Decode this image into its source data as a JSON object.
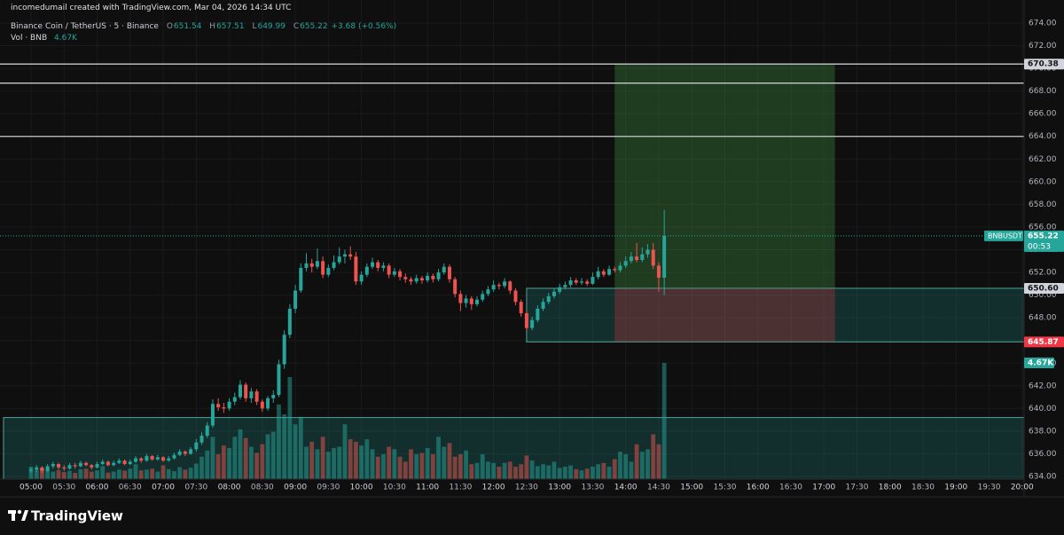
{
  "chart_data": {
    "type": "candlestick",
    "watermark": "incomedumail created with TradingView.com, Mar 04, 2026 14:34 UTC",
    "title": "Binance Coin / TetherUS · 5 · Binance",
    "ohlc_labels": [
      "O",
      "H",
      "L",
      "C"
    ],
    "change": "+3.68 (+0.56%)",
    "volume_title": "Vol · BNB",
    "volume_label": "4.67K",
    "symbol": "BNBUSDT",
    "countdown": "00:53",
    "brand": "TradingView",
    "x": [
      "05:00",
      "05:05",
      "05:10",
      "05:15",
      "05:20",
      "05:25",
      "05:30",
      "05:35",
      "05:40",
      "05:45",
      "05:50",
      "05:55",
      "06:00",
      "06:05",
      "06:10",
      "06:15",
      "06:20",
      "06:25",
      "06:30",
      "06:35",
      "06:40",
      "06:45",
      "06:50",
      "06:55",
      "07:00",
      "07:05",
      "07:10",
      "07:15",
      "07:20",
      "07:25",
      "07:30",
      "07:35",
      "07:40",
      "07:45",
      "07:50",
      "07:55",
      "08:00",
      "08:05",
      "08:10",
      "08:15",
      "08:20",
      "08:25",
      "08:30",
      "08:35",
      "08:40",
      "08:45",
      "08:50",
      "08:55",
      "09:00",
      "09:05",
      "09:10",
      "09:15",
      "09:20",
      "09:25",
      "09:30",
      "09:35",
      "09:40",
      "09:45",
      "09:50",
      "09:55",
      "10:00",
      "10:05",
      "10:10",
      "10:15",
      "10:20",
      "10:25",
      "10:30",
      "10:35",
      "10:40",
      "10:45",
      "10:50",
      "10:55",
      "11:00",
      "11:05",
      "11:10",
      "11:15",
      "11:20",
      "11:25",
      "11:30",
      "11:35",
      "11:40",
      "11:45",
      "11:50",
      "11:55",
      "12:00",
      "12:05",
      "12:10",
      "12:15",
      "12:20",
      "12:25",
      "12:30",
      "12:35",
      "12:40",
      "12:45",
      "12:50",
      "12:55",
      "13:00",
      "13:05",
      "13:10",
      "13:15",
      "13:20",
      "13:25",
      "13:30",
      "13:35",
      "13:40",
      "13:45",
      "13:50",
      "13:55",
      "14:00",
      "14:05",
      "14:10",
      "14:15",
      "14:20",
      "14:25",
      "14:30",
      "14:35"
    ],
    "ohlc": [
      [
        634.5,
        634.8,
        634.3,
        634.6
      ],
      [
        634.6,
        635.0,
        634.4,
        634.8
      ],
      [
        634.8,
        634.9,
        634.3,
        634.5
      ],
      [
        634.5,
        635.1,
        634.4,
        634.9
      ],
      [
        634.9,
        635.3,
        634.7,
        635.1
      ],
      [
        635.1,
        635.2,
        634.6,
        634.8
      ],
      [
        634.8,
        635.0,
        634.5,
        634.7
      ],
      [
        634.7,
        635.2,
        634.6,
        635.0
      ],
      [
        635.0,
        635.2,
        634.7,
        634.9
      ],
      [
        634.9,
        635.4,
        634.8,
        635.2
      ],
      [
        635.2,
        635.3,
        634.9,
        635.0
      ],
      [
        635.0,
        635.1,
        634.6,
        634.8
      ],
      [
        634.8,
        635.3,
        634.7,
        635.1
      ],
      [
        635.1,
        635.5,
        635.0,
        635.3
      ],
      [
        635.3,
        635.4,
        634.9,
        635.0
      ],
      [
        635.0,
        635.4,
        634.9,
        635.2
      ],
      [
        635.2,
        635.6,
        635.1,
        635.4
      ],
      [
        635.4,
        635.5,
        635.0,
        635.1
      ],
      [
        635.1,
        635.5,
        635.0,
        635.3
      ],
      [
        635.3,
        635.8,
        635.2,
        635.6
      ],
      [
        635.6,
        635.7,
        635.2,
        635.4
      ],
      [
        635.4,
        636.0,
        635.3,
        635.8
      ],
      [
        635.8,
        635.9,
        635.4,
        635.5
      ],
      [
        635.5,
        635.9,
        635.4,
        635.7
      ],
      [
        635.7,
        635.8,
        635.3,
        635.4
      ],
      [
        635.4,
        635.8,
        635.3,
        635.6
      ],
      [
        635.6,
        636.1,
        635.5,
        635.9
      ],
      [
        635.9,
        636.4,
        635.8,
        636.2
      ],
      [
        636.2,
        636.3,
        635.8,
        636.0
      ],
      [
        636.0,
        636.6,
        635.9,
        636.4
      ],
      [
        636.4,
        637.3,
        636.2,
        637.0
      ],
      [
        637.0,
        637.9,
        636.8,
        637.6
      ],
      [
        637.6,
        638.8,
        637.4,
        638.5
      ],
      [
        638.5,
        640.8,
        638.3,
        640.4
      ],
      [
        640.4,
        640.9,
        639.8,
        640.1
      ],
      [
        640.1,
        640.5,
        639.6,
        640.0
      ],
      [
        640.0,
        640.9,
        639.8,
        640.6
      ],
      [
        640.6,
        641.4,
        640.3,
        641.0
      ],
      [
        641.0,
        642.5,
        640.8,
        642.1
      ],
      [
        642.1,
        642.3,
        640.6,
        640.9
      ],
      [
        640.9,
        641.8,
        640.5,
        641.5
      ],
      [
        641.5,
        641.7,
        640.3,
        640.6
      ],
      [
        640.6,
        640.8,
        639.7,
        640.0
      ],
      [
        640.0,
        641.1,
        639.8,
        640.9
      ],
      [
        640.9,
        641.6,
        640.5,
        641.2
      ],
      [
        641.2,
        644.3,
        641.0,
        643.9
      ],
      [
        643.9,
        646.9,
        643.5,
        646.5
      ],
      [
        646.5,
        649.2,
        646.2,
        648.8
      ],
      [
        648.8,
        650.9,
        648.4,
        650.4
      ],
      [
        650.4,
        652.8,
        650.2,
        652.4
      ],
      [
        652.4,
        653.7,
        652.1,
        652.8
      ],
      [
        652.8,
        653.2,
        652.0,
        652.5
      ],
      [
        652.5,
        654.1,
        652.3,
        653.0
      ],
      [
        653.0,
        653.4,
        651.5,
        651.8
      ],
      [
        651.8,
        652.7,
        651.6,
        652.4
      ],
      [
        652.4,
        653.5,
        652.2,
        652.9
      ],
      [
        652.9,
        654.2,
        652.7,
        653.4
      ],
      [
        653.4,
        654.0,
        652.8,
        653.6
      ],
      [
        653.6,
        654.3,
        653.1,
        653.4
      ],
      [
        653.4,
        653.8,
        650.9,
        651.2
      ],
      [
        651.2,
        652.1,
        650.9,
        651.8
      ],
      [
        651.8,
        652.8,
        651.6,
        652.5
      ],
      [
        652.5,
        653.3,
        652.3,
        652.9
      ],
      [
        652.9,
        653.1,
        652.1,
        652.4
      ],
      [
        652.4,
        652.9,
        652.1,
        652.6
      ],
      [
        652.6,
        652.8,
        651.5,
        651.8
      ],
      [
        651.8,
        652.4,
        651.6,
        652.1
      ],
      [
        652.1,
        652.3,
        651.3,
        651.6
      ],
      [
        651.6,
        651.9,
        651.1,
        651.4
      ],
      [
        651.4,
        651.6,
        650.9,
        651.2
      ],
      [
        651.2,
        651.8,
        651.0,
        651.5
      ],
      [
        651.5,
        651.7,
        651.0,
        651.3
      ],
      [
        651.3,
        652.0,
        651.1,
        651.7
      ],
      [
        651.7,
        651.9,
        651.1,
        651.4
      ],
      [
        651.4,
        652.3,
        651.2,
        652.0
      ],
      [
        652.0,
        652.8,
        651.8,
        652.5
      ],
      [
        652.5,
        652.7,
        651.1,
        651.4
      ],
      [
        651.4,
        651.6,
        649.8,
        650.1
      ],
      [
        650.1,
        650.4,
        648.6,
        649.3
      ],
      [
        649.3,
        650.0,
        648.9,
        649.7
      ],
      [
        649.7,
        649.9,
        648.7,
        649.2
      ],
      [
        649.2,
        649.9,
        649.0,
        649.6
      ],
      [
        649.6,
        650.4,
        649.4,
        650.1
      ],
      [
        650.1,
        650.8,
        649.9,
        650.5
      ],
      [
        650.5,
        651.3,
        650.3,
        650.9
      ],
      [
        650.9,
        651.1,
        650.5,
        650.8
      ],
      [
        650.8,
        651.5,
        650.6,
        651.2
      ],
      [
        651.2,
        651.3,
        650.1,
        650.4
      ],
      [
        650.4,
        650.6,
        649.1,
        649.4
      ],
      [
        649.4,
        649.6,
        648.1,
        648.4
      ],
      [
        648.4,
        648.6,
        646.8,
        647.1
      ],
      [
        647.1,
        648.1,
        646.9,
        647.8
      ],
      [
        647.8,
        649.1,
        647.6,
        648.8
      ],
      [
        648.8,
        649.7,
        648.6,
        649.4
      ],
      [
        649.4,
        650.2,
        649.2,
        649.9
      ],
      [
        649.9,
        650.6,
        649.7,
        650.3
      ],
      [
        650.3,
        651.0,
        650.1,
        650.7
      ],
      [
        650.7,
        651.2,
        650.5,
        650.9
      ],
      [
        650.9,
        651.6,
        650.7,
        651.3
      ],
      [
        651.3,
        651.5,
        650.9,
        651.1
      ],
      [
        651.1,
        651.5,
        650.9,
        651.2
      ],
      [
        651.2,
        651.4,
        650.8,
        651.0
      ],
      [
        651.0,
        652.0,
        650.9,
        651.6
      ],
      [
        651.6,
        652.5,
        651.4,
        652.1
      ],
      [
        652.1,
        652.3,
        651.6,
        651.8
      ],
      [
        651.8,
        652.6,
        651.7,
        652.3
      ],
      [
        652.3,
        652.5,
        652.0,
        652.2
      ],
      [
        652.2,
        652.9,
        652.0,
        652.6
      ],
      [
        652.6,
        653.4,
        652.4,
        653.0
      ],
      [
        653.0,
        653.8,
        652.8,
        653.4
      ],
      [
        653.4,
        654.6,
        652.9,
        653.1
      ],
      [
        653.1,
        654.2,
        652.9,
        653.6
      ],
      [
        653.6,
        654.5,
        653.3,
        654.0
      ],
      [
        654.0,
        654.6,
        652.3,
        652.6
      ],
      [
        652.6,
        652.9,
        650.3,
        651.54
      ],
      [
        651.54,
        657.51,
        649.99,
        655.22
      ]
    ],
    "volume": [
      500,
      350,
      420,
      380,
      300,
      360,
      280,
      330,
      250,
      400,
      420,
      300,
      350,
      520,
      260,
      300,
      380,
      340,
      420,
      600,
      350,
      380,
      420,
      300,
      550,
      400,
      320,
      480,
      380,
      460,
      620,
      900,
      1150,
      1700,
      1000,
      1350,
      1250,
      1700,
      2000,
      1650,
      1300,
      1050,
      1400,
      1800,
      1900,
      3000,
      2600,
      4100,
      2200,
      2500,
      1300,
      1500,
      1200,
      1700,
      1100,
      1250,
      1300,
      2200,
      1600,
      1500,
      1350,
      1600,
      1200,
      900,
      1000,
      1300,
      1200,
      900,
      700,
      1200,
      1000,
      1050,
      1250,
      1000,
      1700,
      1300,
      1450,
      900,
      1000,
      1150,
      600,
      650,
      1000,
      700,
      650,
      500,
      650,
      700,
      500,
      600,
      950,
      750,
      520,
      600,
      550,
      700,
      450,
      500,
      550,
      400,
      350,
      420,
      500,
      600,
      650,
      500,
      800,
      1100,
      1000,
      700,
      1400,
      1100,
      1200,
      1800,
      1400,
      4670
    ],
    "up_color": "#26a69a",
    "down_color": "#ef5350",
    "ylim": [
      633.77,
      675.64
    ],
    "yticks": [
      {
        "value": 634,
        "label": "634.00"
      },
      {
        "value": 636,
        "label": "636.00"
      },
      {
        "value": 638,
        "label": "638.00"
      },
      {
        "value": 640,
        "label": "640.00"
      },
      {
        "value": 642,
        "label": "642.00"
      },
      {
        "value": 644,
        "label": "644.00"
      },
      {
        "value": 646,
        "label": "646.00"
      },
      {
        "value": 648,
        "label": "648.00"
      },
      {
        "value": 650,
        "label": "650.00"
      },
      {
        "value": 652,
        "label": "652.00"
      },
      {
        "value": 654,
        "label": "654.00"
      },
      {
        "value": 656,
        "label": "656.00"
      },
      {
        "value": 658,
        "label": "658.00"
      },
      {
        "value": 660,
        "label": "660.00"
      },
      {
        "value": 662,
        "label": "662.00"
      },
      {
        "value": 664,
        "label": "664.00"
      },
      {
        "value": 666,
        "label": "666.00"
      },
      {
        "value": 668,
        "label": "668.00"
      },
      {
        "value": 670,
        "label": "670.00"
      },
      {
        "value": 672,
        "label": "672.00"
      },
      {
        "value": 674,
        "label": "674.00"
      }
    ],
    "xticks": [
      "05:00",
      "05:30",
      "06:00",
      "06:30",
      "07:00",
      "07:30",
      "08:00",
      "08:30",
      "09:00",
      "09:30",
      "10:00",
      "10:30",
      "11:00",
      "11:30",
      "12:00",
      "12:30",
      "13:00",
      "13:30",
      "14:00",
      "14:30",
      "15:00",
      "15:30",
      "16:00",
      "16:30",
      "17:00",
      "17:30",
      "18:00",
      "18:30",
      "19:00",
      "19:30",
      "20:00"
    ],
    "hlines": [
      670.38,
      668.7,
      664
    ],
    "position": {
      "start": "13:50",
      "end": "17:10",
      "target": 670.38,
      "entry": {
        "value": 650.6,
        "label": "650.60"
      },
      "stop": 645.87
    },
    "rectangles": [
      {
        "start": "12:30",
        "top": 650.6,
        "bottom": 645.87
      },
      {
        "start": "04:35",
        "top": 639.2,
        "bottom": 633.77
      }
    ],
    "grid": true
  }
}
